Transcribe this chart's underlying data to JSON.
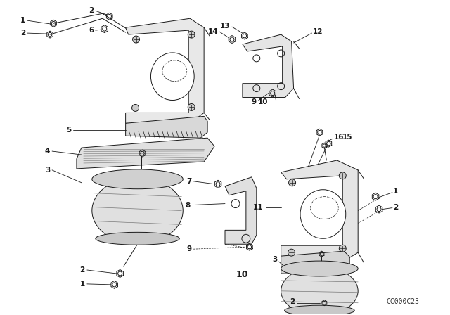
{
  "bg_color": "#ffffff",
  "watermark": "CC000C23",
  "fig_w": 6.4,
  "fig_h": 4.48,
  "dpi": 100,
  "line_color": "#1a1a1a",
  "lw": 0.7,
  "font_size": 7.5
}
